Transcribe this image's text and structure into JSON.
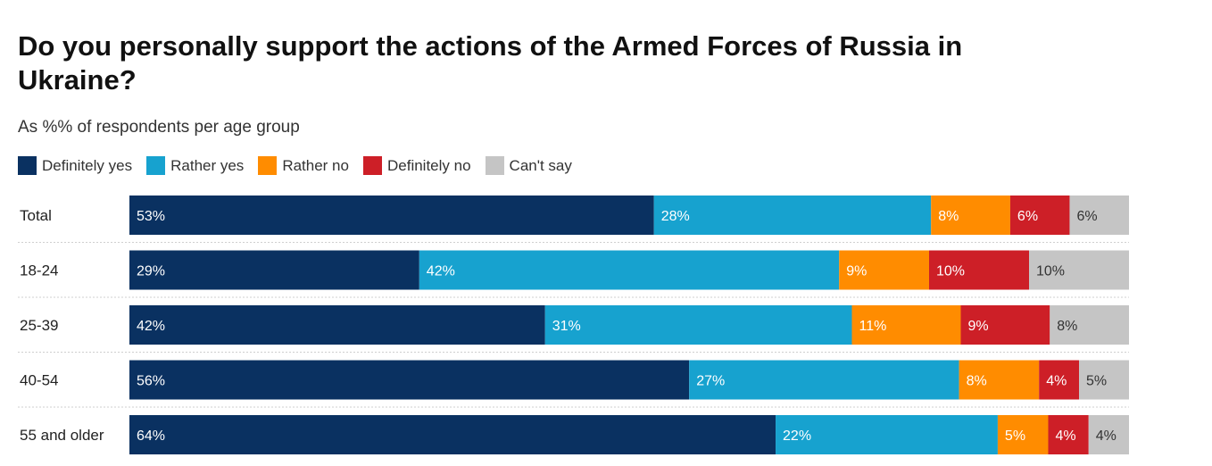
{
  "title": "Do you personally support the actions of the Armed Forces of Russia in Ukraine?",
  "subtitle": "As %% of respondents per age group",
  "chart_data": {
    "type": "bar",
    "orientation": "horizontal",
    "stacked": true,
    "categories": [
      "Total",
      "18-24",
      "25-39",
      "40-54",
      "55 and older"
    ],
    "series": [
      {
        "name": "Definitely yes",
        "color": "#0a3161",
        "label_color": "#ffffff",
        "values": [
          53,
          29,
          42,
          56,
          64
        ]
      },
      {
        "name": "Rather yes",
        "color": "#17a2cf",
        "label_color": "#ffffff",
        "values": [
          28,
          42,
          31,
          27,
          22
        ]
      },
      {
        "name": "Rather no",
        "color": "#ff8c00",
        "label_color": "#ffffff",
        "values": [
          8,
          9,
          11,
          8,
          5
        ]
      },
      {
        "name": "Definitely no",
        "color": "#cd1f27",
        "label_color": "#ffffff",
        "values": [
          6,
          10,
          9,
          4,
          4
        ]
      },
      {
        "name": "Can't say",
        "color": "#c5c5c5",
        "label_color": "#333333",
        "values": [
          6,
          10,
          8,
          5,
          4
        ]
      }
    ],
    "value_suffix": "%",
    "legend_position": "top-left",
    "grid": false
  }
}
